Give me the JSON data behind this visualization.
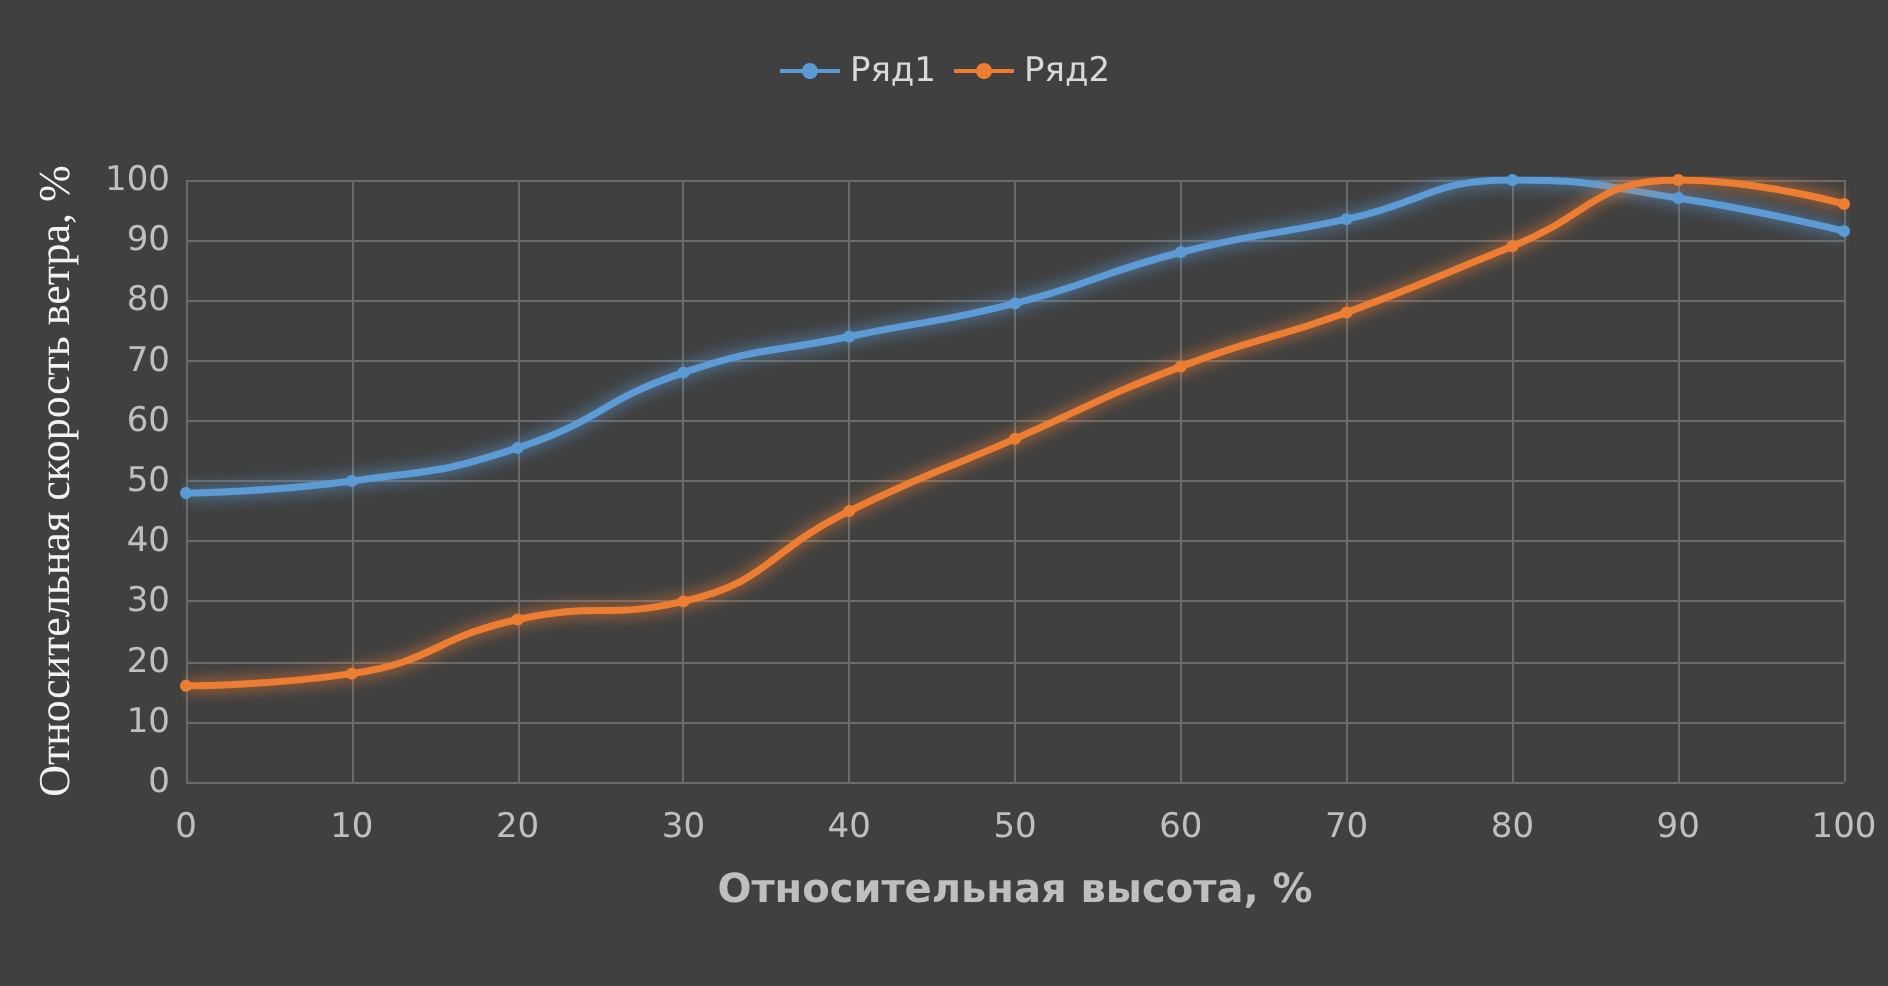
{
  "chart_data": {
    "type": "line",
    "xlabel": "Относительная высота, %",
    "ylabel": "Относительная скорость ветра, %",
    "x": [
      0,
      10,
      20,
      30,
      40,
      50,
      60,
      70,
      80,
      90,
      100
    ],
    "series": [
      {
        "name": "Ряд1",
        "color": "#5b9bd5",
        "values": [
          48,
          50,
          55.5,
          68,
          74,
          79.5,
          88,
          93.5,
          100,
          97,
          91.5
        ]
      },
      {
        "name": "Ряд2",
        "color": "#ed7d31",
        "values": [
          16,
          18,
          27,
          30,
          45,
          57,
          69,
          78,
          89,
          100,
          96
        ]
      }
    ],
    "xlim": [
      0,
      100
    ],
    "xticks": [
      0,
      10,
      20,
      30,
      40,
      50,
      60,
      70,
      80,
      90,
      100
    ],
    "ylim": [
      0,
      100
    ],
    "yticks": [
      0,
      10,
      20,
      30,
      40,
      50,
      60,
      70,
      80,
      90,
      100
    ],
    "grid": true,
    "legend": "top",
    "marker": "circle",
    "line_style": "solid"
  }
}
